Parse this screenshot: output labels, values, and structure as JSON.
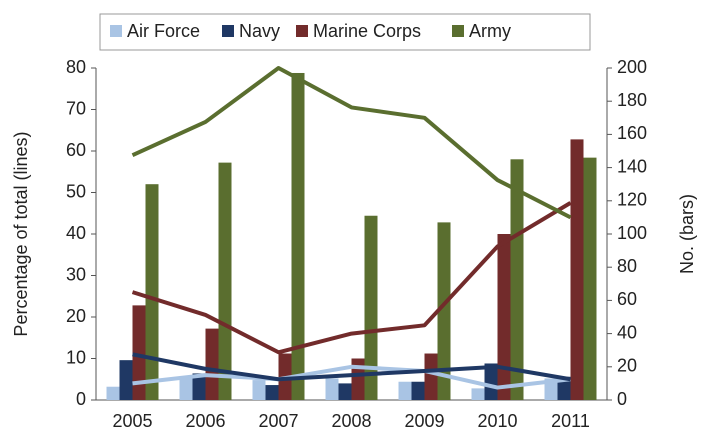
{
  "chart_data": {
    "type": "bar-line",
    "y_label": "Percentage of  total (lines)",
    "y2_label": "No. (bars)",
    "categories": [
      "2005",
      "2006",
      "2007",
      "2008",
      "2009",
      "2010",
      "2011"
    ],
    "ylim": [
      0,
      80
    ],
    "yticks": [
      0,
      10,
      20,
      30,
      40,
      50,
      60,
      70,
      80
    ],
    "y2lim": [
      0,
      200
    ],
    "y2ticks": [
      0,
      20,
      40,
      60,
      80,
      100,
      120,
      140,
      160,
      180,
      200
    ],
    "series": [
      {
        "name": "Air Force",
        "color": "#a9c4e4",
        "axis": "y2",
        "values": [
          8,
          14,
          12,
          13,
          11,
          7,
          13
        ],
        "line_values": [
          4,
          6,
          5,
          8,
          7,
          3,
          5
        ]
      },
      {
        "name": "Navy",
        "color": "#1f3864",
        "axis": "y2",
        "values": [
          24,
          16,
          9,
          10,
          11,
          22,
          14
        ],
        "line_values": [
          11,
          7.5,
          5,
          6,
          7,
          8,
          5
        ]
      },
      {
        "name": "Marine Corps",
        "color": "#722b2b",
        "axis": "y2",
        "values": [
          57,
          43,
          28,
          25,
          28,
          100,
          157
        ],
        "line_values": [
          26,
          20.5,
          11.5,
          16,
          18,
          37,
          47.5
        ]
      },
      {
        "name": "Army",
        "color": "#5a6e2f",
        "axis": "y2",
        "values": [
          130,
          143,
          197,
          111,
          107,
          145,
          146
        ],
        "line_values": [
          59,
          67,
          80,
          70.5,
          68,
          53,
          44
        ]
      }
    ]
  }
}
